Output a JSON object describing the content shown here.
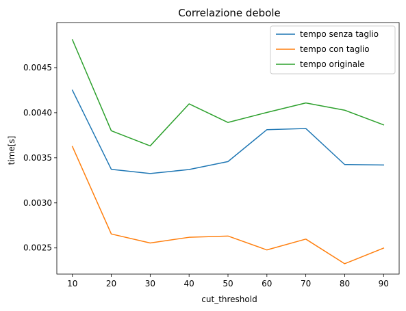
{
  "chart_data": {
    "type": "line",
    "title": "Correlazione debole",
    "xlabel": "cut_threshold",
    "ylabel": "time[s]",
    "x": [
      10,
      20,
      30,
      40,
      50,
      60,
      70,
      80,
      90
    ],
    "xlim": [
      6,
      94
    ],
    "ylim": [
      0.00221,
      0.005
    ],
    "xticks": [
      10,
      20,
      30,
      40,
      50,
      60,
      70,
      80,
      90
    ],
    "yticks": [
      0.0025,
      0.003,
      0.0035,
      0.004,
      0.0045
    ],
    "ytick_labels": [
      "0.0025",
      "0.0030",
      "0.0035",
      "0.0040",
      "0.0045"
    ],
    "grid": false,
    "legend_position": "top-right",
    "series": [
      {
        "name": "tempo senza taglio",
        "color": "#1f77b4",
        "values": [
          0.00425,
          0.003372,
          0.003325,
          0.00337,
          0.003458,
          0.003812,
          0.003825,
          0.003425,
          0.00342
        ]
      },
      {
        "name": "tempo con taglio",
        "color": "#ff7f0e",
        "values": [
          0.003625,
          0.002655,
          0.002555,
          0.002618,
          0.002632,
          0.002478,
          0.002598,
          0.002325,
          0.002498
        ]
      },
      {
        "name": "tempo originale",
        "color": "#2ca02c",
        "values": [
          0.00481,
          0.0038,
          0.003632,
          0.004098,
          0.003892,
          0.004003,
          0.004108,
          0.004028,
          0.003865
        ]
      }
    ]
  }
}
